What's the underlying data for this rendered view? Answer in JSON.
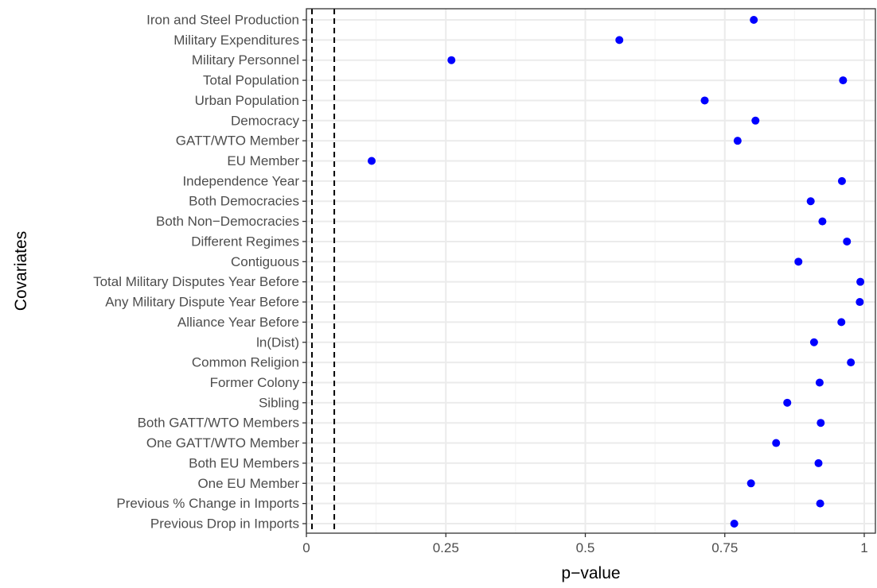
{
  "chart_data": {
    "type": "scatter",
    "title": "",
    "xlabel": "p−value",
    "ylabel": "Covariates",
    "xlim": [
      0,
      1.02
    ],
    "x_ticks": [
      0,
      0.25,
      0.5,
      0.75,
      1
    ],
    "x_tick_labels": [
      "0",
      "0.25",
      "0.5",
      "0.75",
      "1"
    ],
    "grid": true,
    "reference_lines": [
      0.01,
      0.05
    ],
    "point_color": "#0000ff",
    "categories": [
      "Iron and Steel Production",
      "Military Expenditures",
      "Military Personnel",
      "Total Population",
      "Urban Population",
      "Democracy",
      "GATT/WTO Member",
      "EU Member",
      "Independence Year",
      "Both Democracies",
      "Both Non−Democracies",
      "Different Regimes",
      "Contiguous",
      "Total Military Disputes Year Before",
      "Any Military Dispute Year Before",
      "Alliance Year Before",
      "ln(Dist)",
      "Common Religion",
      "Former Colony",
      "Sibling",
      "Both GATT/WTO Members",
      "One GATT/WTO Member",
      "Both EU Members",
      "One EU Member",
      "Previous % Change in Imports",
      "Previous Drop in Imports"
    ],
    "values": [
      0.802,
      0.561,
      0.26,
      0.962,
      0.714,
      0.805,
      0.773,
      0.117,
      0.96,
      0.904,
      0.925,
      0.969,
      0.882,
      0.993,
      0.992,
      0.959,
      0.91,
      0.976,
      0.92,
      0.862,
      0.922,
      0.842,
      0.918,
      0.797,
      0.921,
      0.767
    ]
  }
}
